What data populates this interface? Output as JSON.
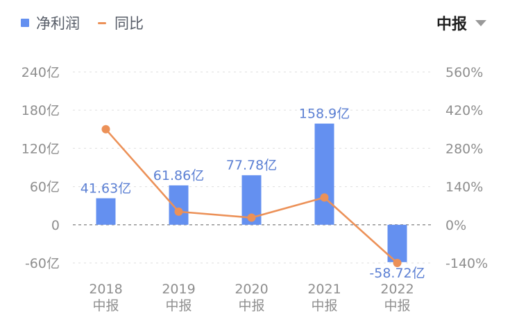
{
  "legend": {
    "bar_label": "净利润",
    "line_label": "同比"
  },
  "period_selector": {
    "label": "中报"
  },
  "chart_data": {
    "type": "bar",
    "categories": [
      "2018\n中报",
      "2019\n中报",
      "2020\n中报",
      "2021\n中报",
      "2022\n中报"
    ],
    "series": [
      {
        "name": "净利润",
        "type": "bar",
        "axis": "left",
        "values": [
          41.63,
          61.86,
          77.78,
          158.9,
          -58.72
        ],
        "labels": [
          "41.63亿",
          "61.86亿",
          "77.78亿",
          "158.9亿",
          "-58.72亿"
        ],
        "color": "#6490f0"
      },
      {
        "name": "同比",
        "type": "line",
        "axis": "right",
        "values": [
          350,
          48,
          26,
          100,
          -140
        ],
        "color": "#ec9158"
      }
    ],
    "y_left": {
      "ticks": [
        -60,
        0,
        60,
        120,
        180,
        240
      ],
      "tick_labels": [
        "-60亿",
        "0",
        "60亿",
        "120亿",
        "180亿",
        "240亿"
      ],
      "range": [
        -60,
        240
      ]
    },
    "y_right": {
      "ticks": [
        -140,
        0,
        140,
        280,
        420,
        560
      ],
      "tick_labels": [
        "-140%",
        "0%",
        "140%",
        "280%",
        "420%",
        "560%"
      ],
      "range": [
        -140,
        560
      ]
    },
    "grid": "dashed",
    "legend_position": "top-left"
  }
}
